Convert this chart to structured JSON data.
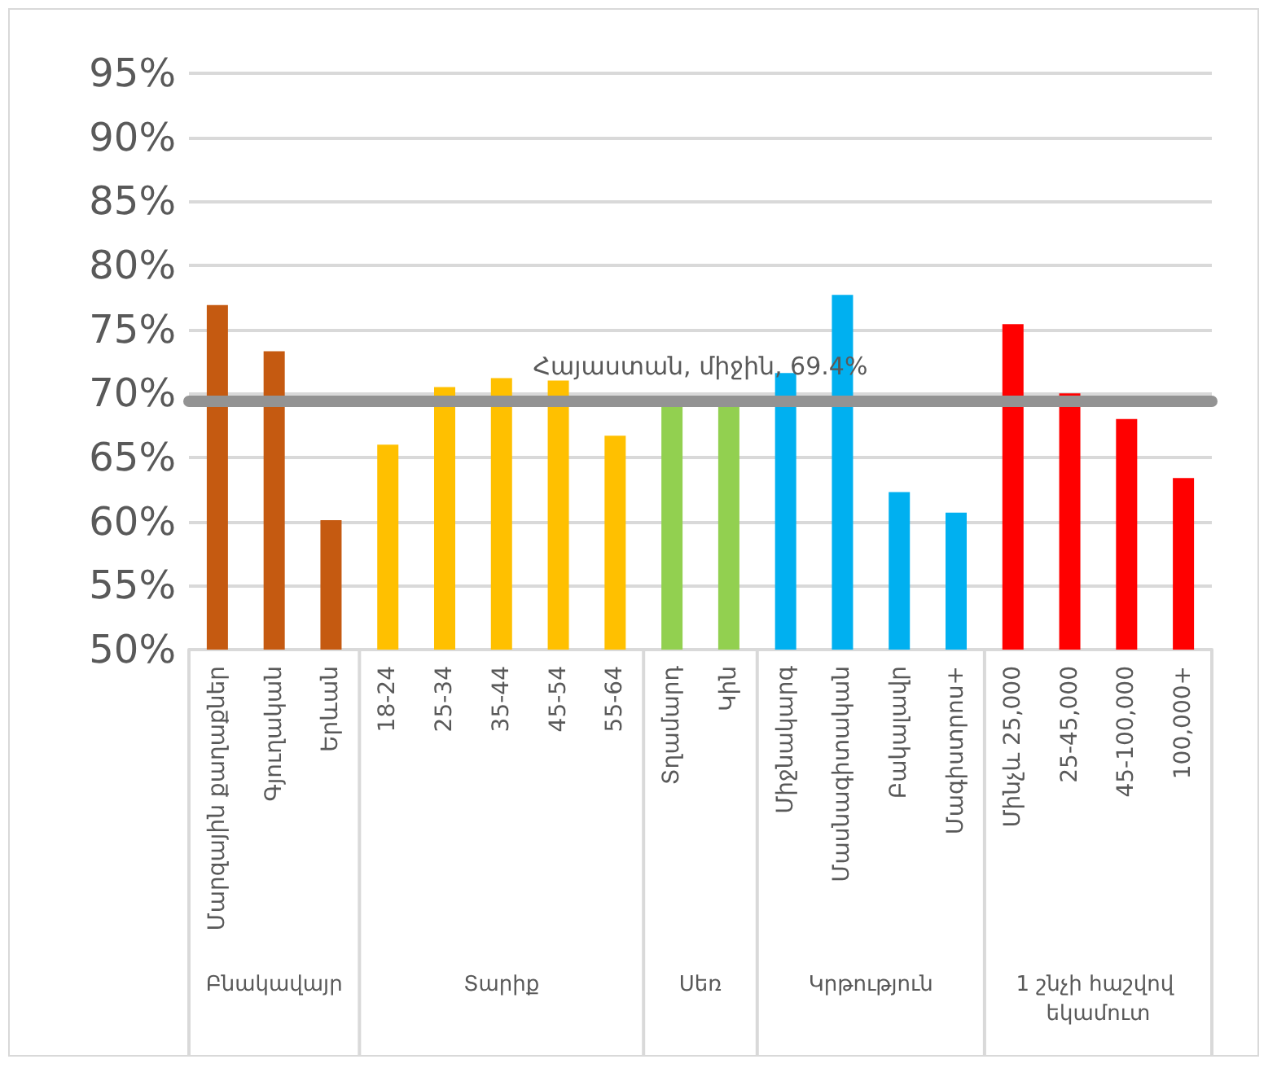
{
  "chart_data": {
    "type": "bar",
    "categories": [
      "Մարզային քաղաքներ",
      "Գյուղական",
      "Երևան",
      "18-24",
      "25-34",
      "35-44",
      "45-54",
      "55-64",
      "Տղամարդ",
      "Կին",
      "Միջնակարգ",
      "Մասնագիտական",
      "Բակալավր",
      "Մագիստրոս+",
      "Մինչև 25,000",
      "25-45,000",
      "45-100,000",
      "100,000+"
    ],
    "values": [
      76.9,
      73.3,
      60.1,
      66.0,
      70.5,
      71.2,
      71.0,
      66.7,
      69.2,
      69.2,
      71.6,
      77.7,
      62.3,
      60.7,
      75.4,
      70.0,
      68.0,
      63.4
    ],
    "colors": [
      "#c55a11",
      "#c55a11",
      "#c55a11",
      "#ffc000",
      "#ffc000",
      "#ffc000",
      "#ffc000",
      "#ffc000",
      "#92d050",
      "#92d050",
      "#00b0f0",
      "#00b0f0",
      "#00b0f0",
      "#00b0f0",
      "#ff0000",
      "#ff0000",
      "#ff0000",
      "#ff0000"
    ],
    "ylim": [
      50,
      95
    ],
    "yticks": [
      {
        "value": 50,
        "label": "50%"
      },
      {
        "value": 55,
        "label": "55%"
      },
      {
        "value": 60,
        "label": "60%"
      },
      {
        "value": 65,
        "label": "65%"
      },
      {
        "value": 70,
        "label": "70%"
      },
      {
        "value": 75,
        "label": "75%"
      },
      {
        "value": 80,
        "label": "80%"
      },
      {
        "value": 85,
        "label": "85%"
      },
      {
        "value": 90,
        "label": "90%"
      },
      {
        "value": 95,
        "label": "95%"
      }
    ],
    "grid": "y",
    "ref_lines": [
      {
        "axis": "y",
        "value": 69.4,
        "label": "Հայաստան, միջին, 69.4%",
        "color": "#939393"
      }
    ],
    "annotations": [
      "Բնակավայր",
      "Տարիք",
      "Սեռ",
      "Կրթություն",
      "1 շնչի հաշվով եկամուտ"
    ]
  }
}
